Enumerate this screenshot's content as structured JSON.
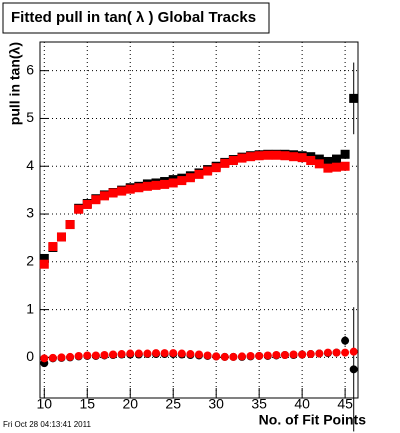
{
  "chart_data": {
    "type": "scatter",
    "title": "Fitted pull in tan( λ )  Global Tracks",
    "x_label": "No. of Fit Points",
    "y_label": "pull in tan(λ)",
    "footer": "Fri Oct 28 04:13:41 2011",
    "x": [
      10,
      11,
      12,
      13,
      14,
      15,
      16,
      17,
      18,
      19,
      20,
      21,
      22,
      23,
      24,
      25,
      26,
      27,
      28,
      29,
      30,
      31,
      32,
      33,
      34,
      35,
      36,
      37,
      38,
      39,
      40,
      41,
      42,
      43,
      44,
      45,
      46
    ],
    "xlim": [
      9.5,
      46.5
    ],
    "xticks": [
      10,
      15,
      20,
      25,
      30,
      35,
      40,
      45
    ],
    "ylim": [
      -0.85,
      6.6
    ],
    "yticks": [
      0,
      1,
      2,
      3,
      4,
      5,
      6
    ],
    "grid": true,
    "series": [
      {
        "color": "#000000",
        "marker": "square",
        "values": [
          2.07,
          2.3,
          2.52,
          2.78,
          3.12,
          3.22,
          3.32,
          3.4,
          3.45,
          3.5,
          3.55,
          3.58,
          3.63,
          3.65,
          3.68,
          3.72,
          3.75,
          3.8,
          3.86,
          3.93,
          4.0,
          4.08,
          4.14,
          4.19,
          4.22,
          4.24,
          4.25,
          4.25,
          4.25,
          4.24,
          4.22,
          4.2,
          4.15,
          4.1,
          4.15,
          4.25,
          5.42
        ],
        "errors": [
          null,
          null,
          null,
          null,
          null,
          null,
          null,
          null,
          null,
          null,
          null,
          null,
          null,
          null,
          null,
          null,
          null,
          null,
          null,
          null,
          null,
          null,
          null,
          null,
          null,
          null,
          null,
          null,
          null,
          null,
          null,
          null,
          null,
          null,
          null,
          null,
          0.75
        ]
      },
      {
        "color": "#ff0000",
        "marker": "square",
        "values": [
          1.95,
          2.32,
          2.52,
          2.78,
          3.1,
          3.2,
          3.3,
          3.38,
          3.44,
          3.48,
          3.52,
          3.55,
          3.58,
          3.6,
          3.62,
          3.65,
          3.7,
          3.76,
          3.83,
          3.9,
          3.97,
          4.06,
          4.12,
          4.17,
          4.2,
          4.22,
          4.23,
          4.23,
          4.22,
          4.2,
          4.18,
          4.12,
          4.05,
          3.96,
          3.98,
          4.0,
          null
        ]
      },
      {
        "color": "#000000",
        "marker": "circle",
        "values": [
          -0.12,
          -0.02,
          -0.01,
          0.0,
          0.02,
          0.03,
          0.03,
          0.04,
          0.05,
          0.06,
          0.06,
          0.06,
          0.07,
          0.07,
          0.07,
          0.07,
          0.06,
          0.05,
          0.04,
          0.03,
          0.02,
          0.01,
          0.01,
          0.01,
          0.02,
          0.03,
          0.03,
          0.04,
          0.05,
          0.05,
          0.06,
          0.07,
          0.08,
          0.09,
          0.1,
          0.35,
          -0.25
        ],
        "errors": [
          null,
          null,
          null,
          null,
          null,
          null,
          null,
          null,
          null,
          null,
          null,
          null,
          null,
          null,
          null,
          null,
          null,
          null,
          null,
          null,
          null,
          null,
          null,
          null,
          null,
          null,
          null,
          null,
          null,
          null,
          null,
          null,
          null,
          null,
          null,
          0.1,
          1.3
        ]
      },
      {
        "color": "#ff0000",
        "marker": "circle",
        "values": [
          -0.02,
          -0.01,
          0.0,
          0.01,
          0.03,
          0.04,
          0.04,
          0.05,
          0.06,
          0.07,
          0.08,
          0.08,
          0.08,
          0.09,
          0.09,
          0.09,
          0.08,
          0.07,
          0.06,
          0.04,
          0.02,
          0.01,
          0.01,
          0.02,
          0.03,
          0.03,
          0.04,
          0.05,
          0.05,
          0.06,
          0.06,
          0.07,
          0.08,
          0.1,
          0.1,
          0.1,
          0.12
        ]
      }
    ]
  }
}
